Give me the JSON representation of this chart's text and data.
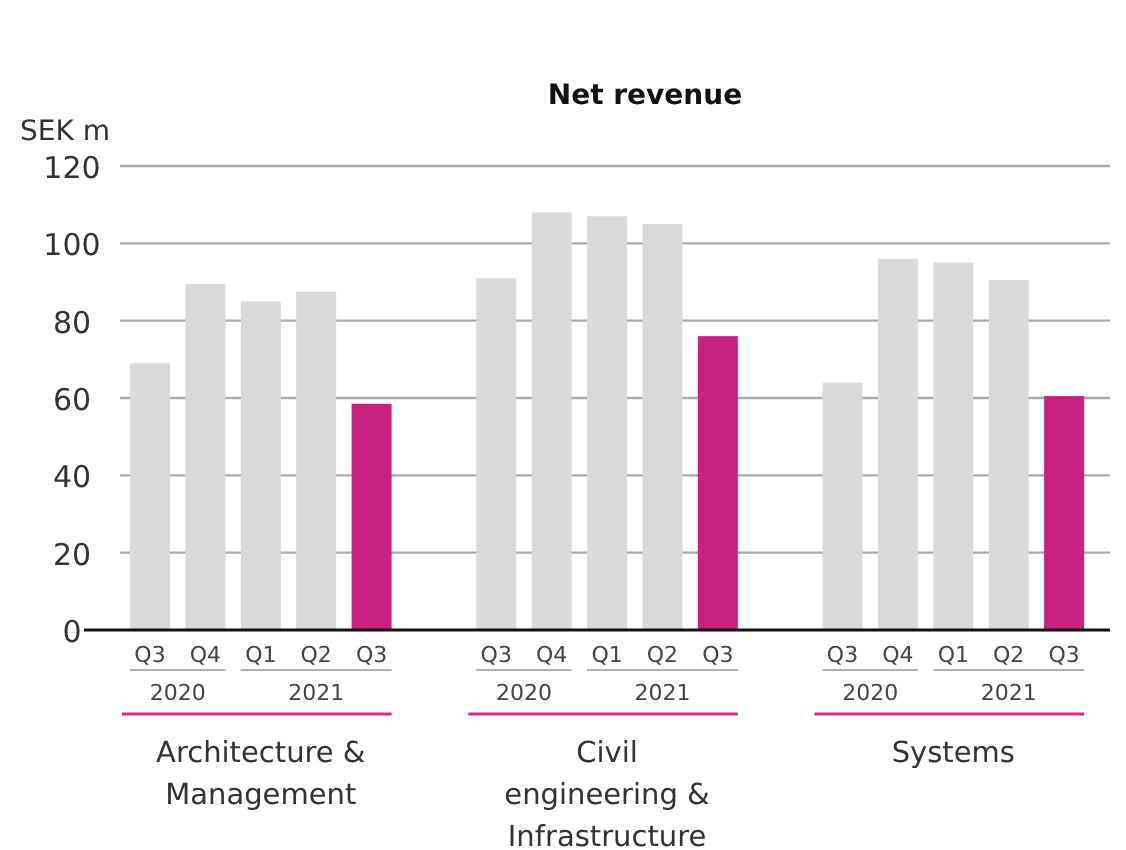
{
  "chart_data": {
    "type": "bar",
    "title": "Net revenue",
    "ylabel": "SEK m",
    "categories": [
      "Q3",
      "Q4",
      "Q1",
      "Q2",
      "Q3",
      "Q3",
      "Q4",
      "Q1",
      "Q2",
      "Q3",
      "Q3",
      "Q4",
      "Q1",
      "Q2",
      "Q3"
    ],
    "values": [
      69,
      89.5,
      85,
      87.5,
      58.5,
      91,
      108,
      107,
      105,
      76,
      64,
      96,
      95,
      90.5,
      60.5
    ],
    "colors": [
      "#d9d9d9",
      "#d9d9d9",
      "#d9d9d9",
      "#d9d9d9",
      "#c92180",
      "#d9d9d9",
      "#d9d9d9",
      "#d9d9d9",
      "#d9d9d9",
      "#c92180",
      "#d9d9d9",
      "#d9d9d9",
      "#d9d9d9",
      "#d9d9d9",
      "#c92180"
    ],
    "ylim": [
      0,
      120
    ],
    "yticks": [
      0,
      20,
      40,
      60,
      80,
      100,
      120
    ],
    "grid": "y",
    "annotations": [
      "2020",
      "2021",
      "Architecture & Management",
      "2020",
      "2021",
      "Civil engineering & Infrastructure",
      "2020",
      "2021",
      "Systems"
    ]
  }
}
